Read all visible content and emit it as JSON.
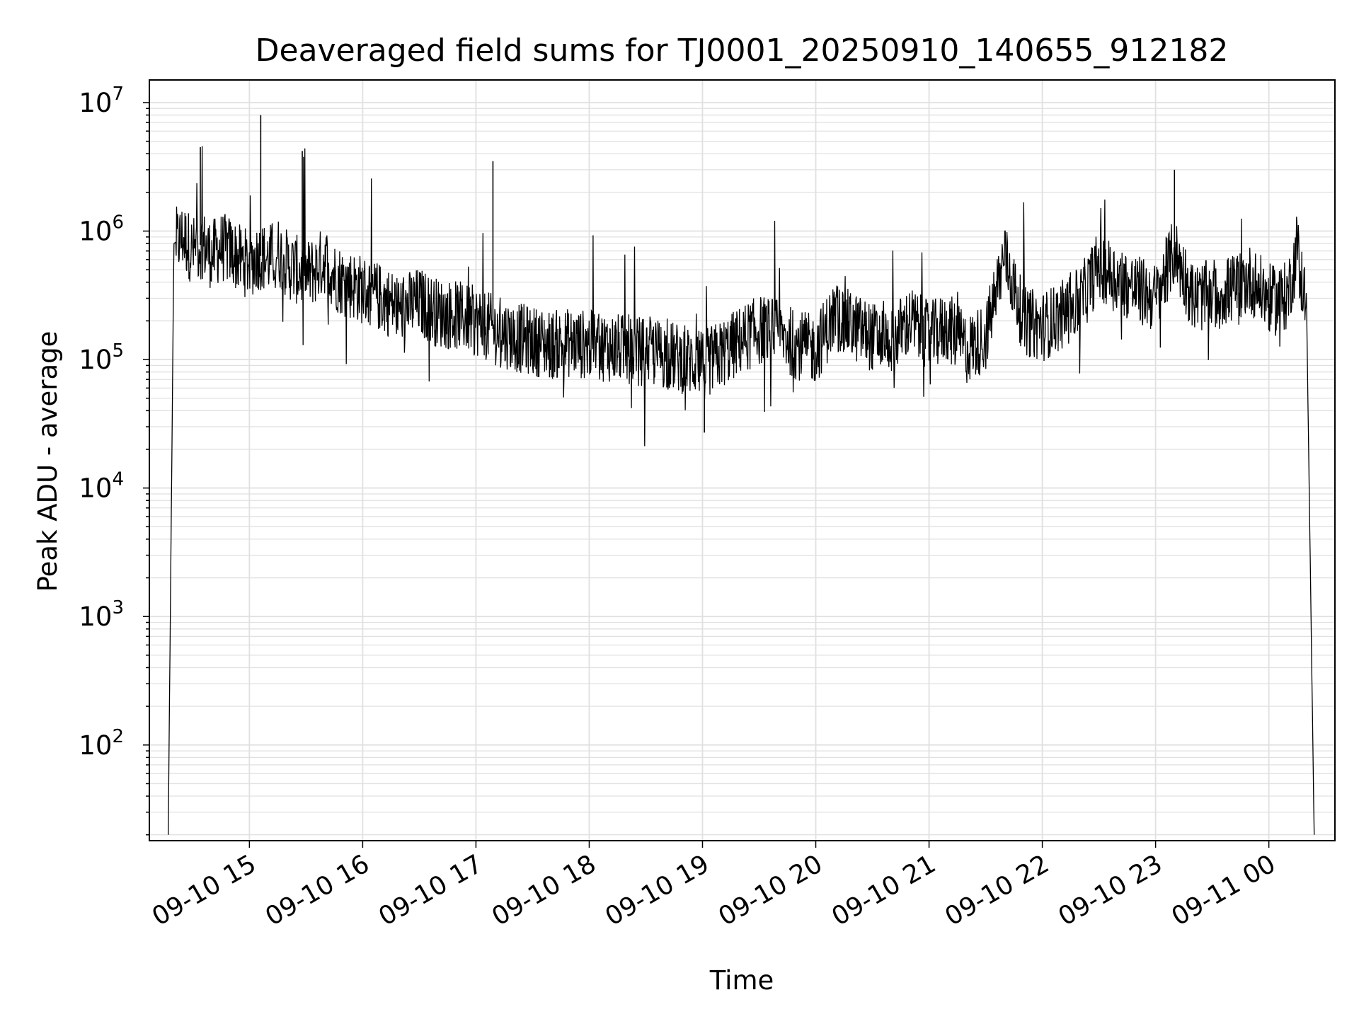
{
  "chart_data": {
    "type": "line",
    "title": "Deaveraged field sums for TJ0001_20250910_140655_912182",
    "xlabel": "Time",
    "ylabel": "Peak ADU - average",
    "xlim": [
      "2025-09-10 14:07",
      "2025-09-11 00:35"
    ],
    "ylim": [
      18,
      15000000
    ],
    "yscale": "log",
    "grid": "on (major and minor)",
    "line_color": "#000000",
    "x_ticks": [
      {
        "label": "09-10 15",
        "time": "2025-09-10 15:00"
      },
      {
        "label": "09-10 16",
        "time": "2025-09-10 16:00"
      },
      {
        "label": "09-10 17",
        "time": "2025-09-10 17:00"
      },
      {
        "label": "09-10 18",
        "time": "2025-09-10 18:00"
      },
      {
        "label": "09-10 19",
        "time": "2025-09-10 19:00"
      },
      {
        "label": "09-10 20",
        "time": "2025-09-10 20:00"
      },
      {
        "label": "09-10 21",
        "time": "2025-09-10 21:00"
      },
      {
        "label": "09-10 22",
        "time": "2025-09-10 22:00"
      },
      {
        "label": "09-10 23",
        "time": "2025-09-10 23:00"
      },
      {
        "label": "09-11 00",
        "time": "2025-09-11 00:00"
      }
    ],
    "y_ticks": [
      {
        "base": "10",
        "exp": "2",
        "value": 100
      },
      {
        "base": "10",
        "exp": "3",
        "value": 1000
      },
      {
        "base": "10",
        "exp": "4",
        "value": 10000
      },
      {
        "base": "10",
        "exp": "5",
        "value": 100000
      },
      {
        "base": "10",
        "exp": "6",
        "value": 1000000
      },
      {
        "base": "10",
        "exp": "7",
        "value": 10000000
      }
    ],
    "series": [
      {
        "x": [
          "2025-09-10 14:17",
          "2025-09-10 14:20",
          "2025-09-10 14:25",
          "2025-09-10 14:30",
          "2025-09-10 14:35",
          "2025-09-10 14:40",
          "2025-09-10 14:45",
          "2025-09-10 14:50",
          "2025-09-10 14:55",
          "2025-09-10 15:00",
          "2025-09-10 15:05",
          "2025-09-10 15:10",
          "2025-09-10 15:15",
          "2025-09-10 15:20",
          "2025-09-10 15:25",
          "2025-09-10 15:30",
          "2025-09-10 15:35",
          "2025-09-10 15:40",
          "2025-09-10 15:45",
          "2025-09-10 15:50",
          "2025-09-10 15:55",
          "2025-09-10 16:00",
          "2025-09-10 16:10",
          "2025-09-10 16:20",
          "2025-09-10 16:30",
          "2025-09-10 16:40",
          "2025-09-10 16:50",
          "2025-09-10 17:00",
          "2025-09-10 17:10",
          "2025-09-10 17:20",
          "2025-09-10 17:30",
          "2025-09-10 17:40",
          "2025-09-10 17:50",
          "2025-09-10 18:00",
          "2025-09-10 18:10",
          "2025-09-10 18:20",
          "2025-09-10 18:30",
          "2025-09-10 18:40",
          "2025-09-10 18:50",
          "2025-09-10 19:00",
          "2025-09-10 19:10",
          "2025-09-10 19:20",
          "2025-09-10 19:30",
          "2025-09-10 19:40",
          "2025-09-10 19:50",
          "2025-09-10 20:00",
          "2025-09-10 20:10",
          "2025-09-10 20:20",
          "2025-09-10 20:30",
          "2025-09-10 20:40",
          "2025-09-10 20:50",
          "2025-09-10 21:00",
          "2025-09-10 21:10",
          "2025-09-10 21:20",
          "2025-09-10 21:30",
          "2025-09-10 21:40",
          "2025-09-10 21:50",
          "2025-09-10 22:00",
          "2025-09-10 22:10",
          "2025-09-10 22:20",
          "2025-09-10 22:30",
          "2025-09-10 22:40",
          "2025-09-10 22:50",
          "2025-09-10 23:00",
          "2025-09-10 23:10",
          "2025-09-10 23:20",
          "2025-09-10 23:30",
          "2025-09-10 23:40",
          "2025-09-10 23:50",
          "2025-09-11 00:00",
          "2025-09-11 00:05",
          "2025-09-11 00:10",
          "2025-09-11 00:15",
          "2025-09-11 00:20",
          "2025-09-11 00:24"
        ],
        "y": [
          20,
          800000,
          900000,
          700000,
          800000,
          650000,
          750000,
          700000,
          600000,
          550000,
          650000,
          600000,
          700000,
          550000,
          500000,
          450000,
          500000,
          600000,
          450000,
          400000,
          380000,
          350000,
          300000,
          250000,
          280000,
          230000,
          220000,
          200000,
          170000,
          150000,
          140000,
          130000,
          135000,
          130000,
          125000,
          120000,
          115000,
          110000,
          100000,
          90000,
          110000,
          140000,
          170000,
          160000,
          130000,
          120000,
          220000,
          180000,
          150000,
          140000,
          200000,
          150000,
          180000,
          120000,
          150000,
          650000,
          200000,
          180000,
          220000,
          280000,
          550000,
          420000,
          350000,
          300000,
          700000,
          300000,
          320000,
          350000,
          420000,
          300000,
          280000,
          320000,
          700000,
          250000,
          20
        ]
      }
    ],
    "peaks": [
      {
        "time": "2025-09-10 15:06",
        "value": 8000000
      },
      {
        "time": "2025-09-10 17:09",
        "value": 3500000
      },
      {
        "time": "2025-09-10 14:34",
        "value": 4500000
      },
      {
        "time": "2025-09-10 15:28",
        "value": 4200000
      },
      {
        "time": "2025-09-10 23:10",
        "value": 3000000
      },
      {
        "time": "2025-09-10 19:01",
        "value": 27000
      }
    ]
  }
}
